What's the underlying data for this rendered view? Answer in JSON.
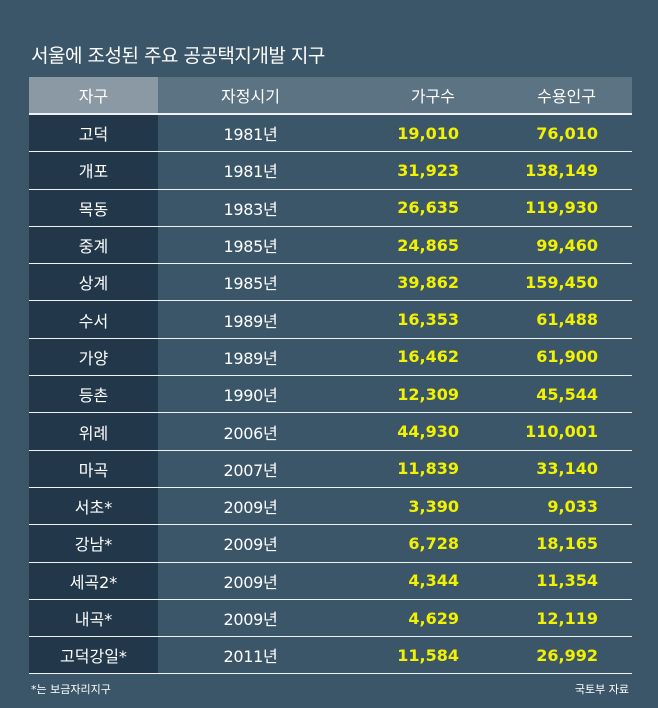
{
  "title": "서울에 조성된 주요 공공택지개발 지구",
  "footnote": "*는 보금자리지구",
  "source": "국토부 자료",
  "colors": {
    "background": "#3b5668",
    "district_column": "#22384a",
    "header": "#5c7383",
    "header_first": "#8a99a4",
    "value_text": "#f2f200"
  },
  "chart_data": {
    "type": "table",
    "columns": [
      "자구",
      "자정시기",
      "가구수",
      "수용인구"
    ],
    "rows": [
      [
        "고덕",
        "1981년",
        "19,010",
        "76,010"
      ],
      [
        "개포",
        "1981년",
        "31,923",
        "138,149"
      ],
      [
        "목동",
        "1983년",
        "26,635",
        "119,930"
      ],
      [
        "중계",
        "1985년",
        "24,865",
        "99,460"
      ],
      [
        "상계",
        "1985년",
        "39,862",
        "159,450"
      ],
      [
        "수서",
        "1989년",
        "16,353",
        "61,488"
      ],
      [
        "가양",
        "1989년",
        "16,462",
        "61,900"
      ],
      [
        "등촌",
        "1990년",
        "12,309",
        "45,544"
      ],
      [
        "위례",
        "2006년",
        "44,930",
        "110,001"
      ],
      [
        "마곡",
        "2007년",
        "11,839",
        "33,140"
      ],
      [
        "서초*",
        "2009년",
        "3,390",
        "9,033"
      ],
      [
        "강남*",
        "2009년",
        "6,728",
        "18,165"
      ],
      [
        "세곡2*",
        "2009년",
        "4,344",
        "11,354"
      ],
      [
        "내곡*",
        "2009년",
        "4,629",
        "12,119"
      ],
      [
        "고덕강일*",
        "2011년",
        "11,584",
        "26,992"
      ]
    ]
  }
}
